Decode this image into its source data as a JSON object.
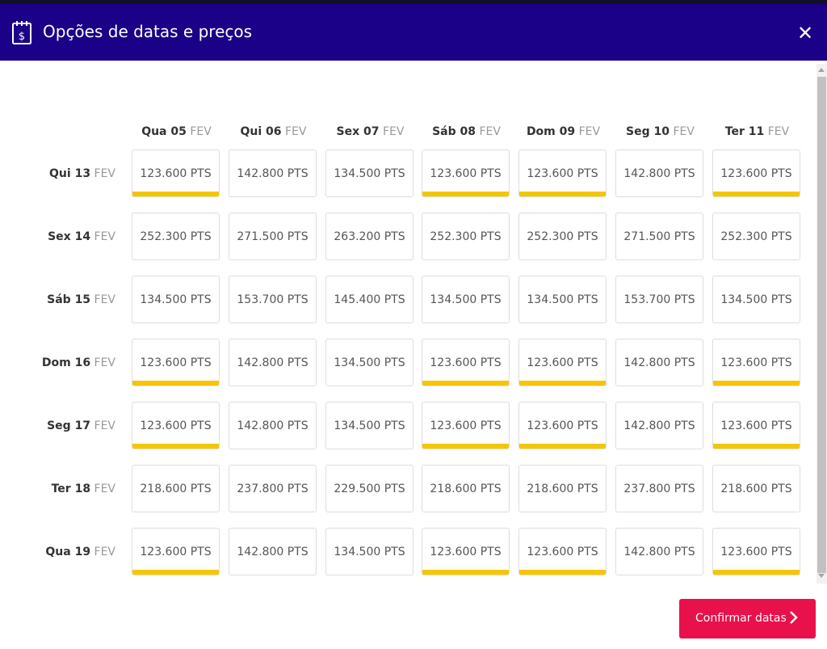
{
  "header": {
    "title": "Opções de datas e preços",
    "icon": "calendar-dollar-icon",
    "close_icon": "close-icon",
    "close_symbol": "✕"
  },
  "colors": {
    "header_bg": "#1b0088",
    "best_price_bar": "#f5c600",
    "confirm_bg": "#e8114b"
  },
  "columns": [
    {
      "day": "Qua 05",
      "month": "FEV"
    },
    {
      "day": "Qui 06",
      "month": "FEV"
    },
    {
      "day": "Sex 07",
      "month": "FEV"
    },
    {
      "day": "Sáb 08",
      "month": "FEV"
    },
    {
      "day": "Dom 09",
      "month": "FEV"
    },
    {
      "day": "Seg 10",
      "month": "FEV"
    },
    {
      "day": "Ter 11",
      "month": "FEV"
    }
  ],
  "rows": [
    {
      "day": "Qui 13",
      "month": "FEV",
      "cells": [
        {
          "price": "123.600 PTS",
          "best": true
        },
        {
          "price": "142.800 PTS",
          "best": false
        },
        {
          "price": "134.500 PTS",
          "best": false
        },
        {
          "price": "123.600 PTS",
          "best": true
        },
        {
          "price": "123.600 PTS",
          "best": true
        },
        {
          "price": "142.800 PTS",
          "best": false
        },
        {
          "price": "123.600 PTS",
          "best": true
        }
      ]
    },
    {
      "day": "Sex 14",
      "month": "FEV",
      "cells": [
        {
          "price": "252.300 PTS",
          "best": false
        },
        {
          "price": "271.500 PTS",
          "best": false
        },
        {
          "price": "263.200 PTS",
          "best": false
        },
        {
          "price": "252.300 PTS",
          "best": false
        },
        {
          "price": "252.300 PTS",
          "best": false
        },
        {
          "price": "271.500 PTS",
          "best": false
        },
        {
          "price": "252.300 PTS",
          "best": false
        }
      ]
    },
    {
      "day": "Sáb 15",
      "month": "FEV",
      "cells": [
        {
          "price": "134.500 PTS",
          "best": false
        },
        {
          "price": "153.700 PTS",
          "best": false
        },
        {
          "price": "145.400 PTS",
          "best": false
        },
        {
          "price": "134.500 PTS",
          "best": false
        },
        {
          "price": "134.500 PTS",
          "best": false
        },
        {
          "price": "153.700 PTS",
          "best": false
        },
        {
          "price": "134.500 PTS",
          "best": false
        }
      ]
    },
    {
      "day": "Dom 16",
      "month": "FEV",
      "cells": [
        {
          "price": "123.600 PTS",
          "best": true
        },
        {
          "price": "142.800 PTS",
          "best": false
        },
        {
          "price": "134.500 PTS",
          "best": false
        },
        {
          "price": "123.600 PTS",
          "best": true
        },
        {
          "price": "123.600 PTS",
          "best": true
        },
        {
          "price": "142.800 PTS",
          "best": false
        },
        {
          "price": "123.600 PTS",
          "best": true
        }
      ]
    },
    {
      "day": "Seg 17",
      "month": "FEV",
      "cells": [
        {
          "price": "123.600 PTS",
          "best": true
        },
        {
          "price": "142.800 PTS",
          "best": false
        },
        {
          "price": "134.500 PTS",
          "best": false
        },
        {
          "price": "123.600 PTS",
          "best": true
        },
        {
          "price": "123.600 PTS",
          "best": true
        },
        {
          "price": "142.800 PTS",
          "best": false
        },
        {
          "price": "123.600 PTS",
          "best": true
        }
      ]
    },
    {
      "day": "Ter 18",
      "month": "FEV",
      "cells": [
        {
          "price": "218.600 PTS",
          "best": false
        },
        {
          "price": "237.800 PTS",
          "best": false
        },
        {
          "price": "229.500 PTS",
          "best": false
        },
        {
          "price": "218.600 PTS",
          "best": false
        },
        {
          "price": "218.600 PTS",
          "best": false
        },
        {
          "price": "237.800 PTS",
          "best": false
        },
        {
          "price": "218.600 PTS",
          "best": false
        }
      ]
    },
    {
      "day": "Qua 19",
      "month": "FEV",
      "cells": [
        {
          "price": "123.600 PTS",
          "best": true
        },
        {
          "price": "142.800 PTS",
          "best": false
        },
        {
          "price": "134.500 PTS",
          "best": false
        },
        {
          "price": "123.600 PTS",
          "best": true
        },
        {
          "price": "123.600 PTS",
          "best": true
        },
        {
          "price": "142.800 PTS",
          "best": false
        },
        {
          "price": "123.600 PTS",
          "best": true
        }
      ]
    }
  ],
  "confirm_button": {
    "label": "Confirmar datas",
    "icon": "chevron-right-icon"
  }
}
